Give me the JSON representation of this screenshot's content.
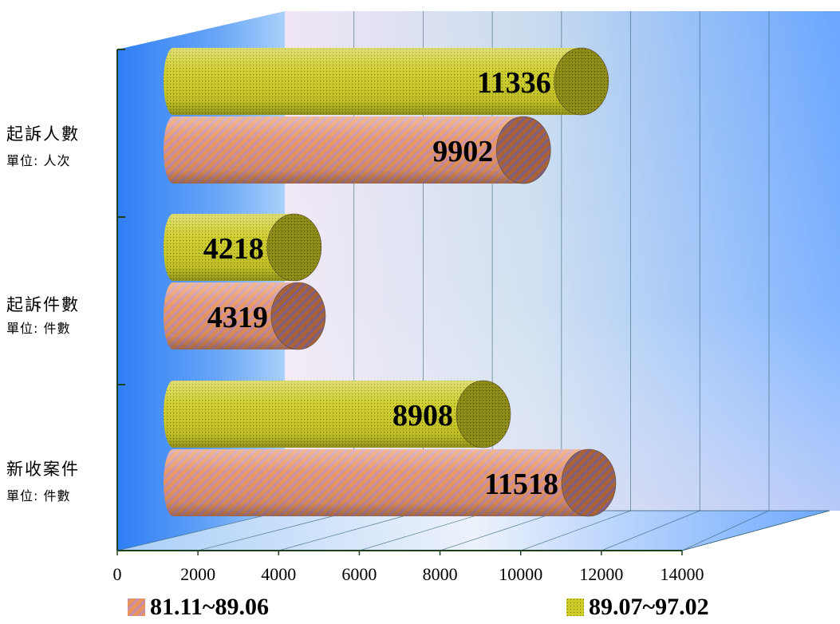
{
  "chart_data": {
    "type": "bar",
    "orientation": "horizontal",
    "style": "3d-cylinder",
    "categories": [
      {
        "label": "起訴人數",
        "unit": "單位: 人次"
      },
      {
        "label": "起訴件數",
        "unit": "單位: 件數"
      },
      {
        "label": "新收案件",
        "unit": "單位: 件數"
      }
    ],
    "series": [
      {
        "name": "81.11~89.06",
        "values": [
          9902,
          4319,
          11518
        ],
        "color": "#e8945a",
        "pattern": "diagonal-stripes"
      },
      {
        "name": "89.07~97.02",
        "values": [
          11336,
          4218,
          8908
        ],
        "color": "#c8c81e",
        "pattern": "dots"
      }
    ],
    "xlim": [
      0,
      14000
    ],
    "xticks": [
      "0",
      "2000",
      "4000",
      "6000",
      "8000",
      "10000",
      "12000",
      "14000"
    ],
    "grid": true,
    "legend_position": "bottom"
  }
}
